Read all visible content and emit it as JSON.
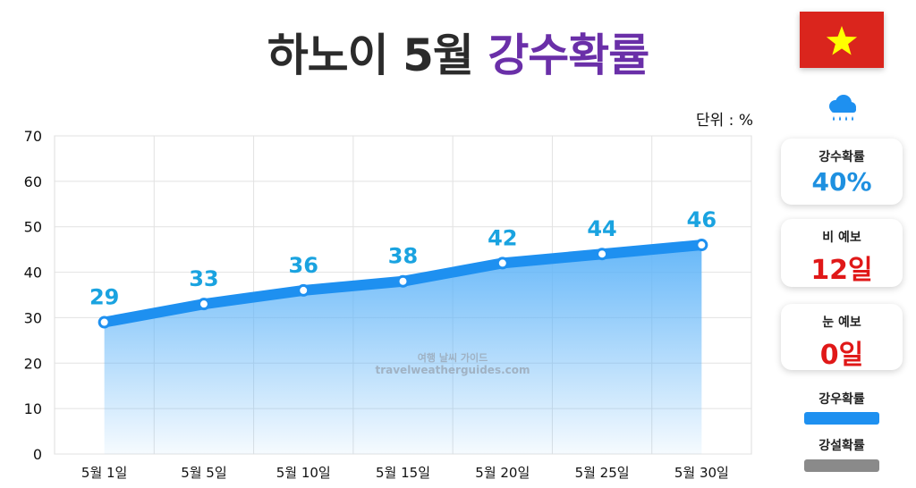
{
  "header": {
    "title_main": "하노이 5월",
    "title_accent": "강수확률"
  },
  "unit_label": "단위 : %",
  "flag": {
    "name": "vietnam-flag",
    "bg_color": "#da251d",
    "star_color": "#ffff00"
  },
  "watermark": {
    "line1": "여행 날씨 가이드",
    "line2": "travelweatherguides.com"
  },
  "cards": {
    "rain_probability": {
      "label": "강수확률",
      "value": "40%"
    },
    "rain_forecast": {
      "label": "비 예보",
      "value": "12일"
    },
    "snow_forecast": {
      "label": "눈 예보",
      "value": "0일"
    }
  },
  "legend": {
    "rain": {
      "label": "강우확률",
      "color": "#1e90f0"
    },
    "snow": {
      "label": "강설확률",
      "color": "#8a8a8a"
    }
  },
  "chart_data": {
    "type": "area",
    "title": "하노이 5월 강수확률",
    "xlabel": "",
    "ylabel": "",
    "unit": "%",
    "categories": [
      "5월 1일",
      "5월 5일",
      "5월 10일",
      "5월 15일",
      "5월 20일",
      "5월 25일",
      "5월 30일"
    ],
    "series": [
      {
        "name": "강우확률",
        "values": [
          29,
          33,
          36,
          38,
          42,
          44,
          46
        ],
        "color": "#1e90f0"
      }
    ],
    "yticks": [
      0,
      10,
      20,
      30,
      40,
      50,
      60,
      70
    ],
    "ylim": [
      0,
      70
    ],
    "grid": true,
    "point_label_color": "#1aa3e0"
  }
}
